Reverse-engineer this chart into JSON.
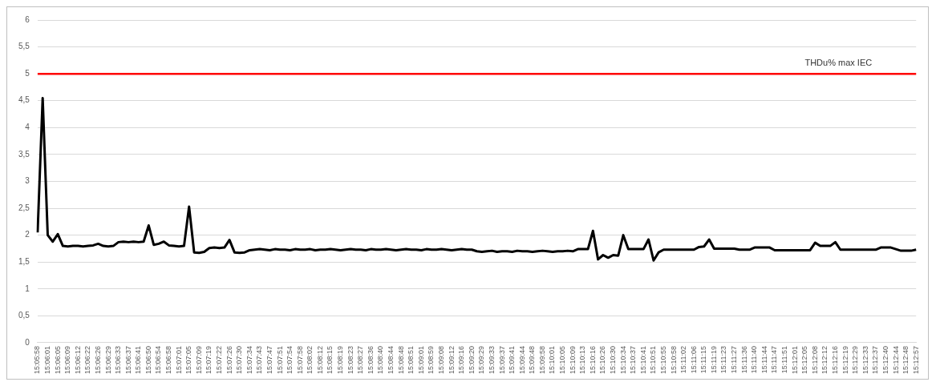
{
  "chart_data": {
    "type": "line",
    "categories": [
      "15:05:58",
      null,
      "15:06:01",
      null,
      "15:06:05",
      null,
      "15:06:09",
      null,
      "15:06:12",
      null,
      "15:06:22",
      null,
      "15:06:26",
      null,
      "15:06:29",
      null,
      "15:06:33",
      null,
      "15:06:37",
      null,
      "15:06:41",
      null,
      "15:06:50",
      null,
      "15:06:54",
      null,
      "15:06:58",
      null,
      "15:07:01",
      null,
      "15:07:05",
      null,
      "15:07:09",
      null,
      "15:07:19",
      null,
      "15:07:22",
      null,
      "15:07:26",
      null,
      "15:07:30",
      null,
      "15:07:34",
      null,
      "15:07:43",
      null,
      "15:07:47",
      null,
      "15:07:51",
      null,
      "15:07:54",
      null,
      "15:07:58",
      null,
      "15:08:02",
      null,
      "15:08:12",
      null,
      "15:08:15",
      null,
      "15:08:19",
      null,
      "15:08:23",
      null,
      "15:08:27",
      null,
      "15:08:36",
      null,
      "15:08:40",
      null,
      "15:08:44",
      null,
      "15:08:48",
      null,
      "15:08:51",
      null,
      "15:09:01",
      null,
      "15:08:59",
      null,
      "15:09:08",
      null,
      "15:09:12",
      null,
      "15:09:16",
      null,
      "15:09:20",
      null,
      "15:09:29",
      null,
      "15:09:33",
      null,
      "15:09:37",
      null,
      "15:09:41",
      null,
      "15:09:44",
      null,
      "15:09:48",
      null,
      "15:09:58",
      null,
      "15:10:01",
      null,
      "15:10:05",
      null,
      "15:10:09",
      null,
      "15:10:13",
      null,
      "15:10:16",
      null,
      "15:10:26",
      null,
      "15:10:30",
      null,
      "15:10:34",
      null,
      "15:10:37",
      null,
      "15:10:41",
      null,
      "15:10:51",
      null,
      "15:10:55",
      null,
      "15:10:58",
      null,
      "15:11:02",
      null,
      "15:11:06",
      null,
      "15:11:15",
      null,
      "15:11:19",
      null,
      "15:11:23",
      null,
      "15:11:27",
      null,
      "15:11:36",
      null,
      "15:11:40",
      null,
      "15:11:44",
      null,
      "15:11:47",
      null,
      "15:11:51",
      null,
      "15:12:01",
      null,
      "15:12:05",
      null,
      "15:12:08",
      null,
      "15:12:12",
      null,
      "15:12:16",
      null,
      "15:12:19",
      null,
      "15:12:29",
      null,
      "15:12:33",
      null,
      "15:12:37",
      null,
      "15:12:40",
      null,
      "15:12:44",
      null,
      "15:12:48",
      null,
      "15:12:57"
    ],
    "series": [
      {
        "color": "#000000",
        "values": [
          2.05,
          4.55,
          2.0,
          1.88,
          2.02,
          1.8,
          1.79,
          1.8,
          1.8,
          1.79,
          1.8,
          1.81,
          1.84,
          1.8,
          1.79,
          1.8,
          1.87,
          1.88,
          1.87,
          1.88,
          1.87,
          1.88,
          2.18,
          1.82,
          1.84,
          1.88,
          1.81,
          1.8,
          1.79,
          1.8,
          2.53,
          1.68,
          1.67,
          1.69,
          1.76,
          1.77,
          1.76,
          1.77,
          1.91,
          1.68,
          1.67,
          1.68,
          1.72,
          1.73,
          1.74,
          1.73,
          1.72,
          1.74,
          1.73,
          1.73,
          1.72,
          1.74,
          1.73,
          1.73,
          1.74,
          1.72,
          1.73,
          1.73,
          1.74,
          1.73,
          1.72,
          1.73,
          1.74,
          1.73,
          1.73,
          1.72,
          1.74,
          1.73,
          1.73,
          1.74,
          1.73,
          1.72,
          1.73,
          1.74,
          1.73,
          1.73,
          1.72,
          1.74,
          1.73,
          1.73,
          1.74,
          1.73,
          1.72,
          1.73,
          1.74,
          1.73,
          1.73,
          1.7,
          1.69,
          1.7,
          1.71,
          1.69,
          1.7,
          1.7,
          1.69,
          1.71,
          1.7,
          1.7,
          1.69,
          1.7,
          1.71,
          1.7,
          1.69,
          1.7,
          1.7,
          1.71,
          1.7,
          1.74,
          1.74,
          1.74,
          2.08,
          1.55,
          1.63,
          1.58,
          1.63,
          1.62,
          2.0,
          1.74,
          1.74,
          1.74,
          1.74,
          1.92,
          1.53,
          1.68,
          1.73,
          1.73,
          1.73,
          1.73,
          1.73,
          1.73,
          1.73,
          1.78,
          1.79,
          1.92,
          1.75,
          1.75,
          1.75,
          1.75,
          1.75,
          1.73,
          1.73,
          1.73,
          1.77,
          1.77,
          1.77,
          1.77,
          1.72,
          1.72,
          1.72,
          1.72,
          1.72,
          1.72,
          1.72,
          1.72,
          1.86,
          1.8,
          1.8,
          1.8,
          1.87,
          1.73,
          1.73,
          1.73,
          1.73,
          1.73,
          1.73,
          1.73,
          1.73,
          1.77,
          1.77,
          1.77,
          1.74,
          1.71,
          1.71,
          1.71,
          1.73
        ]
      }
    ],
    "ylim": [
      0,
      6
    ],
    "yticks": [
      0,
      {
        "value": 0.5,
        "label": "0,5"
      },
      1,
      {
        "value": 1.5,
        "label": "1,5"
      },
      2,
      {
        "value": 2.5,
        "label": "2,5"
      },
      3,
      {
        "value": 3.5,
        "label": "3,5"
      },
      4,
      {
        "value": 4.5,
        "label": "4,5"
      },
      5,
      {
        "value": 5.5,
        "label": "5,5"
      },
      6
    ],
    "grid": "y",
    "legend": false,
    "marker": "none",
    "line_style": "solid",
    "ref_lines": [
      {
        "axis": "y",
        "value": 5,
        "label": "THDu% max IEC",
        "color": "#ff0000",
        "line_style": "solid"
      }
    ]
  }
}
